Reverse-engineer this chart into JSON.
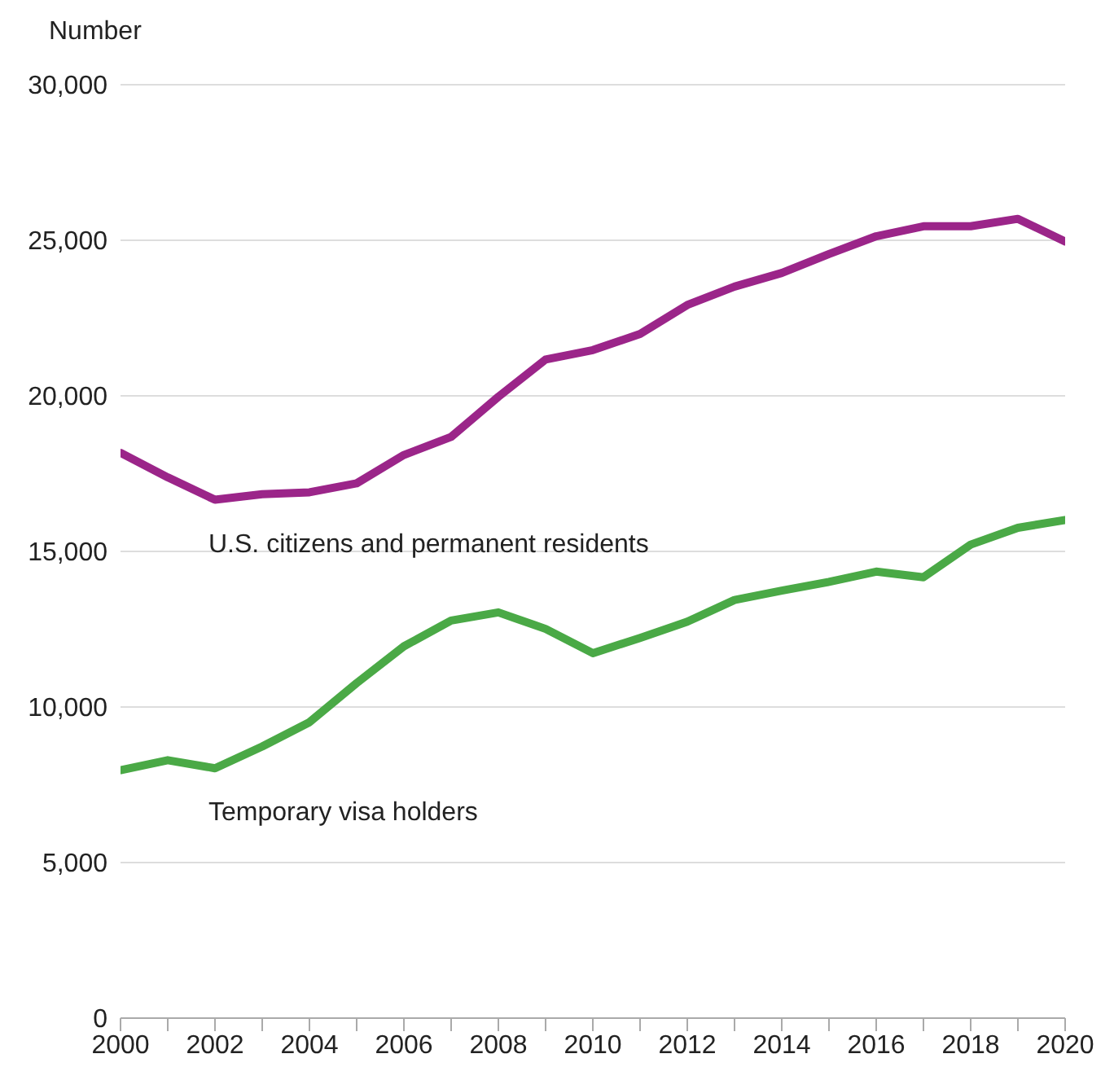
{
  "chart_data": {
    "type": "line",
    "ylabel": "Number",
    "x": [
      2000,
      2001,
      2002,
      2003,
      2004,
      2005,
      2006,
      2007,
      2008,
      2009,
      2010,
      2011,
      2012,
      2013,
      2014,
      2015,
      2016,
      2017,
      2018,
      2019,
      2020
    ],
    "series": [
      {
        "name": "U.S. citizens and permanent residents",
        "color": "#9b2589",
        "values": [
          18170,
          17380,
          16660,
          16840,
          16900,
          17190,
          18100,
          18680,
          19970,
          21170,
          21470,
          21990,
          22920,
          23510,
          23950,
          24560,
          25130,
          25450,
          25450,
          25690,
          24960
        ]
      },
      {
        "name": "Temporary visa holders",
        "color": "#4aa946",
        "values": [
          7970,
          8290,
          8030,
          8730,
          9510,
          10770,
          11950,
          12780,
          13040,
          12510,
          11730,
          12220,
          12740,
          13440,
          13740,
          14020,
          14350,
          14170,
          15220,
          15760,
          16010
        ]
      }
    ],
    "xlim": [
      2000,
      2020
    ],
    "xticks": [
      2000,
      {
        "value": 2001,
        "label": null
      },
      2002,
      {
        "value": 2003,
        "label": null
      },
      2004,
      {
        "value": 2005,
        "label": null
      },
      2006,
      {
        "value": 2007,
        "label": null
      },
      2008,
      {
        "value": 2009,
        "label": null
      },
      2010,
      {
        "value": 2011,
        "label": null
      },
      2012,
      {
        "value": 2013,
        "label": null
      },
      2014,
      {
        "value": 2015,
        "label": null
      },
      2016,
      {
        "value": 2017,
        "label": null
      },
      2018,
      {
        "value": 2019,
        "label": null
      },
      2020
    ],
    "ylim": [
      0,
      30000
    ],
    "yticks": [
      {
        "value": 0,
        "label": "0"
      },
      {
        "value": 5000,
        "label": "5,000"
      },
      {
        "value": 10000,
        "label": "10,000"
      },
      {
        "value": 15000,
        "label": "15,000"
      },
      {
        "value": 20000,
        "label": "20,000"
      },
      {
        "value": 25000,
        "label": "25,000"
      },
      {
        "value": 30000,
        "label": "30,000"
      }
    ],
    "grid": "y",
    "marker": "none",
    "line_style": "solid"
  }
}
